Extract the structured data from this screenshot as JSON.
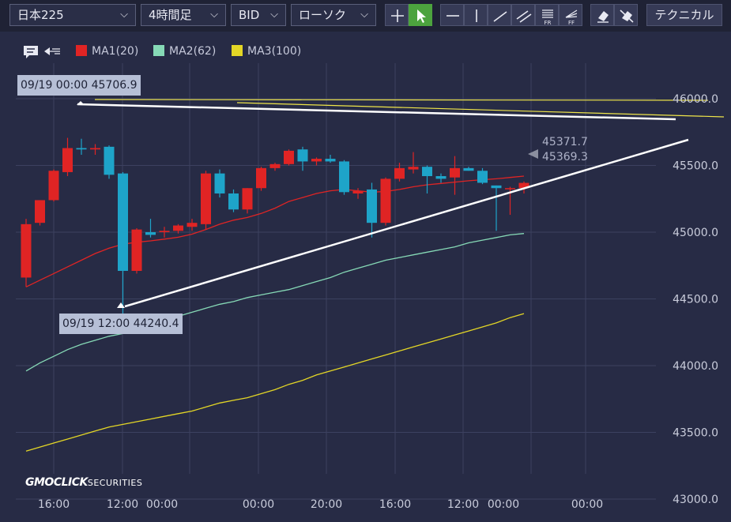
{
  "toolbar": {
    "instrument": "日本225",
    "timeframe": "4時間足",
    "price_type": "BID",
    "chart_type": "ローソク",
    "technical_label": "テクニカル",
    "tools": [
      {
        "name": "crosshair-tool",
        "icon": "crosshair-icon",
        "active": false
      },
      {
        "name": "pointer-tool",
        "icon": "pointer-arrow-icon",
        "active": true
      },
      {
        "name": "horizontal-line-tool",
        "icon": "horizontal-line-icon",
        "active": false
      },
      {
        "name": "vertical-line-tool",
        "icon": "vertical-line-icon",
        "active": false
      },
      {
        "name": "trend-line-tool",
        "icon": "trend-line-icon",
        "active": false
      },
      {
        "name": "parallel-channel-tool",
        "icon": "parallel-lines-icon",
        "active": false
      },
      {
        "name": "fibonacci-retracement-tool",
        "icon": "fib-retracement-icon",
        "active": false,
        "label": "FR"
      },
      {
        "name": "fibonacci-fan-tool",
        "icon": "fib-fan-icon",
        "active": false,
        "label": "FF"
      },
      {
        "name": "eraser-tool",
        "icon": "eraser-icon",
        "active": false
      },
      {
        "name": "erase-all-tool",
        "icon": "eraser-all-icon",
        "active": false
      }
    ]
  },
  "legend": {
    "comment_icon": "comment-icon",
    "collapse_icon": "collapse-arrow-icon",
    "items": [
      {
        "label": "MA1(20)",
        "color": "#e02424"
      },
      {
        "label": "MA2(62)",
        "color": "#86d9b6"
      },
      {
        "label": "MA3(100)",
        "color": "#e3d626"
      }
    ]
  },
  "tooltips": {
    "high": "09/19 00:00 45706.9",
    "low": "09/19 12:00 44240.4"
  },
  "price_labels": {
    "ask": "45371.7",
    "bid": "45369.3"
  },
  "logo": {
    "main": "GMOCLICK",
    "sub": "SECURITIES"
  },
  "colors": {
    "background": "#272b45",
    "grid": "#3c4160",
    "up_candle": "#e02424",
    "down_candle": "#1ea4c9",
    "drawing_line": "#ffffff",
    "yellow_line": "#f0e64a"
  },
  "chart_data": {
    "type": "candlestick",
    "instrument": "日本225",
    "timeframe": "4時間足",
    "y_ticks": [
      "46000.0",
      "45500.0",
      "45000.0",
      "44500.0",
      "44000.0",
      "43500.0",
      "43000.0"
    ],
    "ylim": [
      42990,
      46100
    ],
    "x_tick_labels": [
      "16:00",
      "12:00",
      "00:00",
      "00:00",
      "20:00",
      "16:00",
      "12:00",
      "00:00",
      "00:00"
    ],
    "candles": [
      {
        "o": 44660,
        "h": 45100,
        "l": 44590,
        "c": 45060
      },
      {
        "o": 45070,
        "h": 45230,
        "l": 45050,
        "c": 45240
      },
      {
        "o": 45240,
        "h": 45470,
        "l": 45230,
        "c": 45460
      },
      {
        "o": 45450,
        "h": 45706.9,
        "l": 45420,
        "c": 45630
      },
      {
        "o": 45630,
        "h": 45700,
        "l": 45580,
        "c": 45620
      },
      {
        "o": 45620,
        "h": 45660,
        "l": 45580,
        "c": 45630
      },
      {
        "o": 45640,
        "h": 45650,
        "l": 45400,
        "c": 45430
      },
      {
        "o": 45440,
        "h": 45450,
        "l": 44240.4,
        "c": 44710
      },
      {
        "o": 44710,
        "h": 45030,
        "l": 44690,
        "c": 45020
      },
      {
        "o": 45000,
        "h": 45100,
        "l": 44960,
        "c": 44980
      },
      {
        "o": 45000,
        "h": 45040,
        "l": 44960,
        "c": 45010
      },
      {
        "o": 45010,
        "h": 45060,
        "l": 44990,
        "c": 45050
      },
      {
        "o": 45040,
        "h": 45100,
        "l": 45010,
        "c": 45070
      },
      {
        "o": 45060,
        "h": 45460,
        "l": 45020,
        "c": 45440
      },
      {
        "o": 45440,
        "h": 45470,
        "l": 45260,
        "c": 45290
      },
      {
        "o": 45290,
        "h": 45320,
        "l": 45150,
        "c": 45170
      },
      {
        "o": 45170,
        "h": 45330,
        "l": 45140,
        "c": 45330
      },
      {
        "o": 45330,
        "h": 45490,
        "l": 45310,
        "c": 45480
      },
      {
        "o": 45480,
        "h": 45520,
        "l": 45460,
        "c": 45510
      },
      {
        "o": 45510,
        "h": 45620,
        "l": 45500,
        "c": 45610
      },
      {
        "o": 45620,
        "h": 45640,
        "l": 45460,
        "c": 45530
      },
      {
        "o": 45530,
        "h": 45560,
        "l": 45500,
        "c": 45550
      },
      {
        "o": 45550,
        "h": 45580,
        "l": 45520,
        "c": 45530
      },
      {
        "o": 45530,
        "h": 45540,
        "l": 45280,
        "c": 45300
      },
      {
        "o": 45290,
        "h": 45330,
        "l": 45250,
        "c": 45310
      },
      {
        "o": 45320,
        "h": 45370,
        "l": 44960,
        "c": 45070
      },
      {
        "o": 45070,
        "h": 45410,
        "l": 45050,
        "c": 45400
      },
      {
        "o": 45400,
        "h": 45520,
        "l": 45380,
        "c": 45480
      },
      {
        "o": 45470,
        "h": 45600,
        "l": 45440,
        "c": 45490
      },
      {
        "o": 45490,
        "h": 45500,
        "l": 45290,
        "c": 45420
      },
      {
        "o": 45420,
        "h": 45440,
        "l": 45370,
        "c": 45400
      },
      {
        "o": 45410,
        "h": 45570,
        "l": 45280,
        "c": 45480
      },
      {
        "o": 45480,
        "h": 45490,
        "l": 45460,
        "c": 45460
      },
      {
        "o": 45460,
        "h": 45480,
        "l": 45360,
        "c": 45370
      },
      {
        "o": 45350,
        "h": 45350,
        "l": 45010,
        "c": 45330
      },
      {
        "o": 45330,
        "h": 45340,
        "l": 45130,
        "c": 45330
      },
      {
        "o": 45330,
        "h": 45380,
        "l": 45290,
        "c": 45369.3
      }
    ],
    "series": [
      {
        "name": "MA1(20)",
        "color": "#e02424",
        "values": [
          44590,
          44640,
          44690,
          44740,
          44790,
          44840,
          44880,
          44910,
          44925,
          44935,
          44948,
          44962,
          44985,
          45020,
          45060,
          45090,
          45110,
          45140,
          45180,
          45230,
          45260,
          45290,
          45310,
          45320,
          45310,
          45300,
          45305,
          45320,
          45340,
          45355,
          45365,
          45375,
          45385,
          45393,
          45400,
          45410,
          45420
        ]
      },
      {
        "name": "MA2(62)",
        "color": "#86d9b6",
        "values": [
          43960,
          44020,
          44070,
          44120,
          44160,
          44190,
          44220,
          44240,
          44270,
          44300,
          44330,
          44370,
          44400,
          44430,
          44460,
          44480,
          44510,
          44530,
          44550,
          44570,
          44600,
          44630,
          44660,
          44700,
          44730,
          44760,
          44790,
          44810,
          44830,
          44850,
          44870,
          44890,
          44920,
          44940,
          44960,
          44980,
          44990
        ]
      },
      {
        "name": "MA3(100)",
        "color": "#e3d626",
        "values": [
          43360,
          43390,
          43420,
          43450,
          43480,
          43510,
          43540,
          43560,
          43580,
          43600,
          43620,
          43640,
          43660,
          43690,
          43720,
          43740,
          43760,
          43790,
          43820,
          43860,
          43890,
          43930,
          43960,
          43990,
          44020,
          44050,
          44080,
          44110,
          44140,
          44170,
          44200,
          44230,
          44260,
          44290,
          44320,
          44360,
          44390
        ]
      }
    ],
    "grid": true
  }
}
